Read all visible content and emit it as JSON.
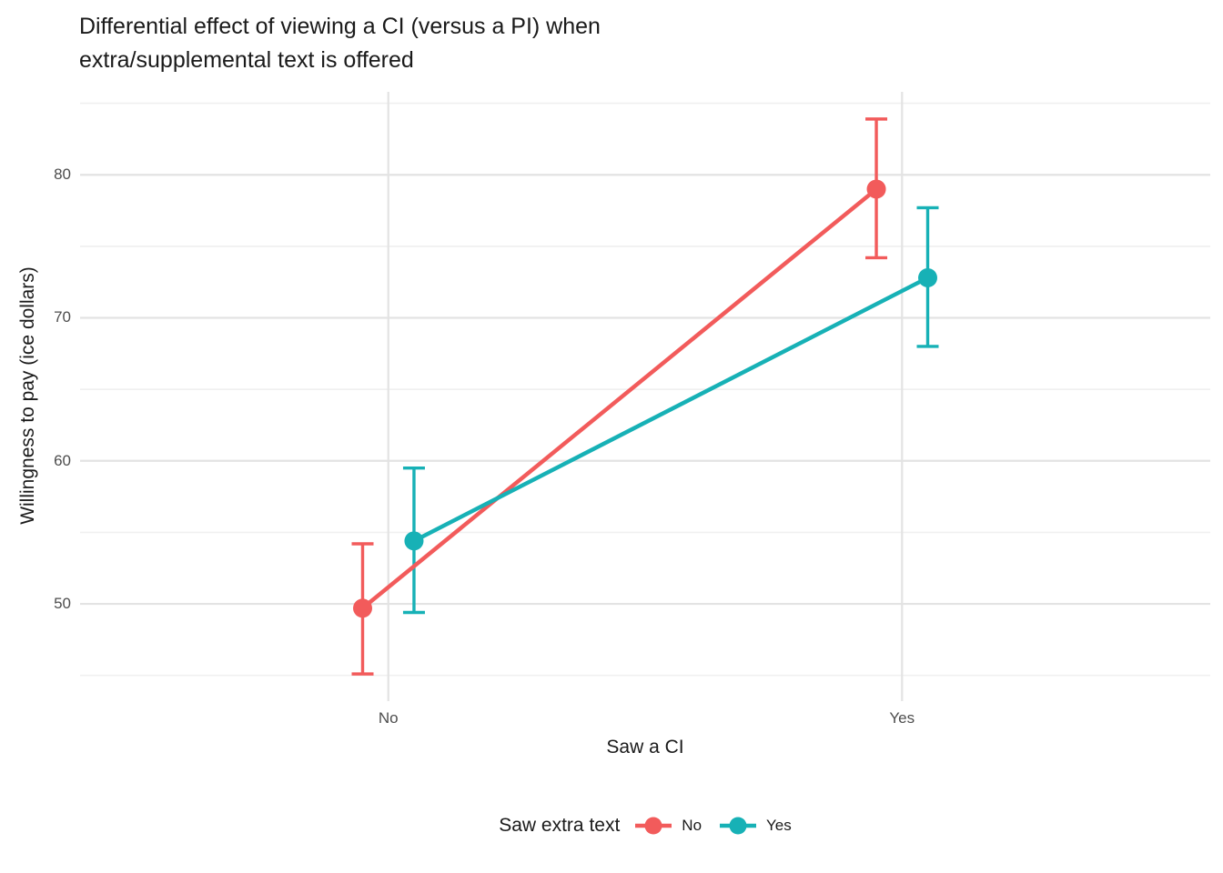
{
  "title": {
    "line1": "Differential effect of viewing a CI (versus a PI) when",
    "line2": "extra/supplemental text is offered"
  },
  "axes": {
    "x_title": "Saw a CI",
    "y_title": "Willingness to pay (ice dollars)"
  },
  "legend": {
    "title": "Saw extra text",
    "position": "bottom"
  },
  "colors": {
    "series_no": "#F25B5B",
    "series_yes": "#17B1B6",
    "grid_major": "#E3E3E3",
    "grid_minor": "#F0F0F0",
    "tick_text": "#4d4d4d",
    "background": "#ffffff"
  },
  "chart_data": {
    "type": "line",
    "subtype": "interaction-plot-with-error-bars",
    "title": "Differential effect of viewing a CI (versus a PI) when extra/supplemental text is offered",
    "xlabel": "Saw a CI",
    "ylabel": "Willingness to pay (ice dollars)",
    "categories": [
      "No",
      "Yes"
    ],
    "ylim": [
      43.2,
      85.8
    ],
    "y_major_ticks": [
      80,
      70,
      60,
      50
    ],
    "y_minor_ticks": [
      85,
      75,
      65,
      55,
      45
    ],
    "grid": "on",
    "legend_title": "Saw extra text",
    "legend_position": "bottom",
    "dodge": 0.05,
    "series": [
      {
        "name": "No",
        "color": "#F25B5B",
        "means": [
          49.7,
          79.0
        ],
        "ci_lower": [
          45.1,
          74.2
        ],
        "ci_upper": [
          54.2,
          83.9
        ]
      },
      {
        "name": "Yes",
        "color": "#17B1B6",
        "means": [
          54.4,
          72.8
        ],
        "ci_lower": [
          49.4,
          68.0
        ],
        "ci_upper": [
          59.5,
          77.7
        ]
      }
    ]
  }
}
